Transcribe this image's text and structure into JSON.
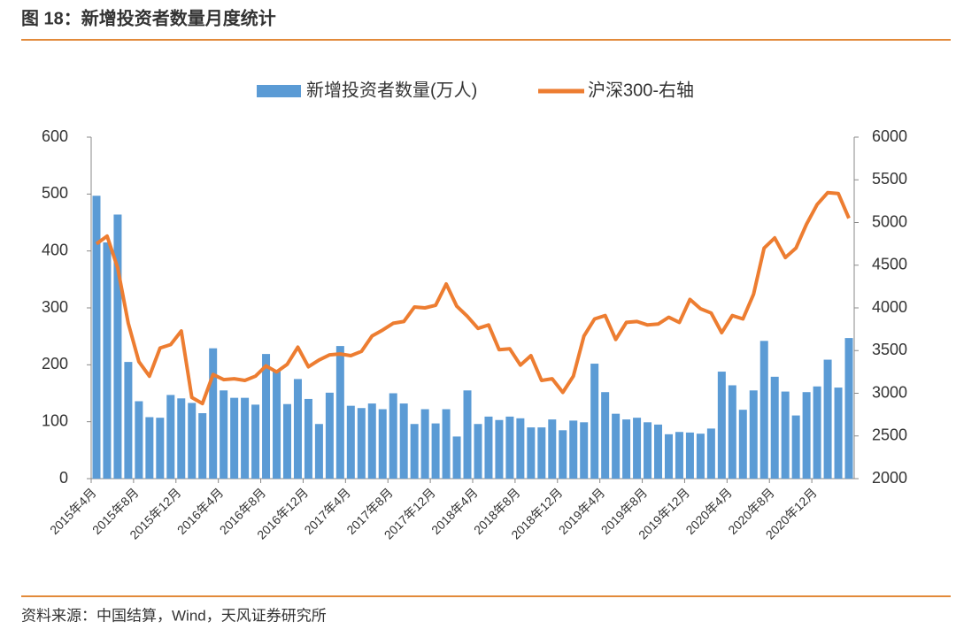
{
  "header": {
    "title": "图 18：新增投资者数量月度统计"
  },
  "chart_data": {
    "type": "bar-line",
    "categories": [
      "2015年4月",
      null,
      null,
      null,
      "2015年8月",
      null,
      null,
      null,
      "2015年12月",
      null,
      null,
      null,
      "2016年4月",
      null,
      null,
      null,
      "2016年8月",
      null,
      null,
      null,
      "2016年12月",
      null,
      null,
      null,
      "2017年4月",
      null,
      null,
      null,
      "2017年8月",
      null,
      null,
      null,
      "2017年12月",
      null,
      null,
      null,
      "2018年4月",
      null,
      null,
      null,
      "2018年8月",
      null,
      null,
      null,
      "2018年12月",
      null,
      null,
      null,
      "2019年4月",
      null,
      null,
      null,
      "2019年8月",
      null,
      null,
      null,
      "2019年12月",
      null,
      null,
      null,
      "2020年4月",
      null,
      null,
      null,
      "2020年8月",
      null,
      null,
      null,
      "2020年12月",
      null,
      null,
      null
    ],
    "series": [
      {
        "name": "新增投资者数量(万人)",
        "type": "bar",
        "color": "#5b9bd5",
        "values": [
          497,
          415,
          464,
          205,
          136,
          108,
          107,
          147,
          141,
          133,
          115,
          229,
          155,
          142,
          142,
          130,
          219,
          190,
          131,
          175,
          140,
          96,
          151,
          233,
          128,
          124,
          132,
          122,
          150,
          132,
          96,
          122,
          97,
          122,
          74,
          155,
          96,
          109,
          103,
          109,
          106,
          90,
          90,
          104,
          85,
          102,
          99,
          202,
          152,
          114,
          104,
          107,
          99,
          95,
          78,
          82,
          81,
          79,
          88,
          188,
          164,
          121,
          155,
          242,
          179,
          153,
          111,
          152,
          162,
          209,
          160,
          247
        ]
      },
      {
        "name": "沪深300-右轴",
        "type": "line",
        "axis": "y2",
        "color": "#ed7d31",
        "values": [
          4750,
          4840,
          4470,
          3820,
          3370,
          3200,
          3530,
          3570,
          3730,
          2950,
          2880,
          3220,
          3160,
          3170,
          3150,
          3200,
          3320,
          3250,
          3340,
          3540,
          3310,
          3390,
          3450,
          3460,
          3440,
          3490,
          3670,
          3740,
          3820,
          3840,
          4010,
          4000,
          4030,
          4280,
          4020,
          3900,
          3760,
          3800,
          3510,
          3520,
          3330,
          3440,
          3150,
          3170,
          3010,
          3200,
          3670,
          3870,
          3910,
          3630,
          3830,
          3840,
          3800,
          3810,
          3890,
          3830,
          4100,
          3990,
          3940,
          3710,
          3910,
          3870,
          4160,
          4700,
          4820,
          4590,
          4700,
          4980,
          5210,
          5350,
          5340,
          5050
        ]
      }
    ],
    "ylim": [
      0,
      600
    ],
    "yticks": [
      0,
      100,
      200,
      300,
      400,
      500,
      600
    ],
    "y2lim": [
      2000,
      6000
    ],
    "y2ticks": [
      2000,
      2500,
      3000,
      3500,
      4000,
      4500,
      5000,
      5500,
      6000
    ],
    "legend": "top",
    "grid": false
  },
  "footer": {
    "source": "资料来源：中国结算，Wind，天风证券研究所"
  }
}
